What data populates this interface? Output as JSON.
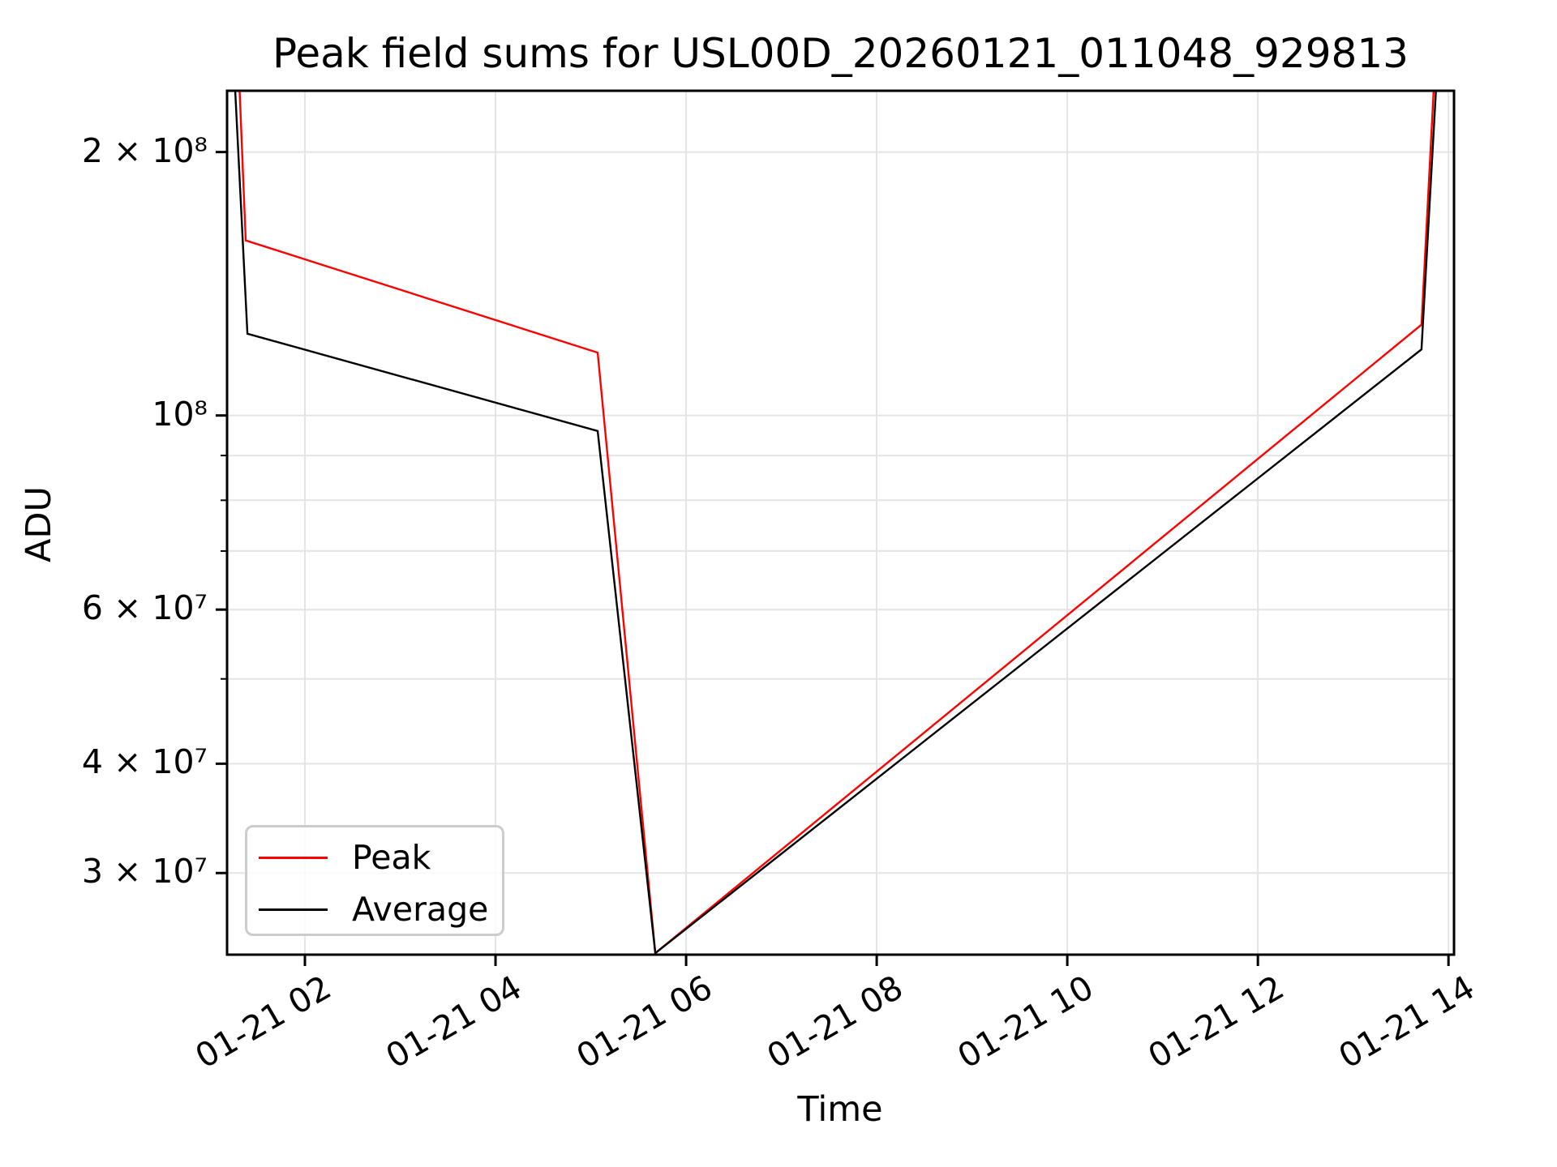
{
  "chart_data": {
    "type": "line",
    "title": "Peak field sums for USL00D_20260121_011048_929813",
    "xlabel": "Time",
    "ylabel": "ADU",
    "y_scale": "log",
    "grid": "both",
    "x_axis_date": "01-21",
    "xlim_hours": [
      1.183,
      14.058
    ],
    "ylim": [
      24200000,
      235000000
    ],
    "x_ticks": [
      {
        "hour": 2,
        "label": "01-21 02"
      },
      {
        "hour": 4,
        "label": "01-21 04"
      },
      {
        "hour": 6,
        "label": "01-21 06"
      },
      {
        "hour": 8,
        "label": "01-21 08"
      },
      {
        "hour": 10,
        "label": "01-21 10"
      },
      {
        "hour": 12,
        "label": "01-21 12"
      },
      {
        "hour": 14,
        "label": "01-21 14"
      }
    ],
    "y_ticks": [
      {
        "value": 200000000,
        "label": "2 × 10⁸"
      },
      {
        "value": 100000000,
        "label": "10⁸"
      },
      {
        "value": 60000000,
        "label": "6 × 10⁷"
      },
      {
        "value": 40000000,
        "label": "4 × 10⁷"
      },
      {
        "value": 30000000,
        "label": "3 × 10⁷"
      }
    ],
    "y_ticks_minor": [
      90000000,
      80000000,
      70000000,
      50000000
    ],
    "legend": {
      "position": "lower left",
      "entries": [
        "Peak",
        "Average"
      ]
    },
    "series": [
      {
        "name": "Peak",
        "color": "#ff0000",
        "t_hours": [
          1.183,
          1.379,
          5.072,
          5.677,
          13.717,
          14.058
        ],
        "values": [
          530000000,
          158500000,
          118000000,
          24300000,
          127000000,
          660000000
        ]
      },
      {
        "name": "Average",
        "color": "#000000",
        "t_hours": [
          1.183,
          1.397,
          5.072,
          5.677,
          13.717,
          14.058
        ],
        "values": [
          360000000,
          124000000,
          96000000,
          24300000,
          119000000,
          550000000
        ]
      }
    ],
    "colors": {
      "background": "#ffffff",
      "gridline": "#e4e4e4",
      "spine": "#000000",
      "text": "#000000",
      "legend_border": "#cccccc"
    }
  }
}
